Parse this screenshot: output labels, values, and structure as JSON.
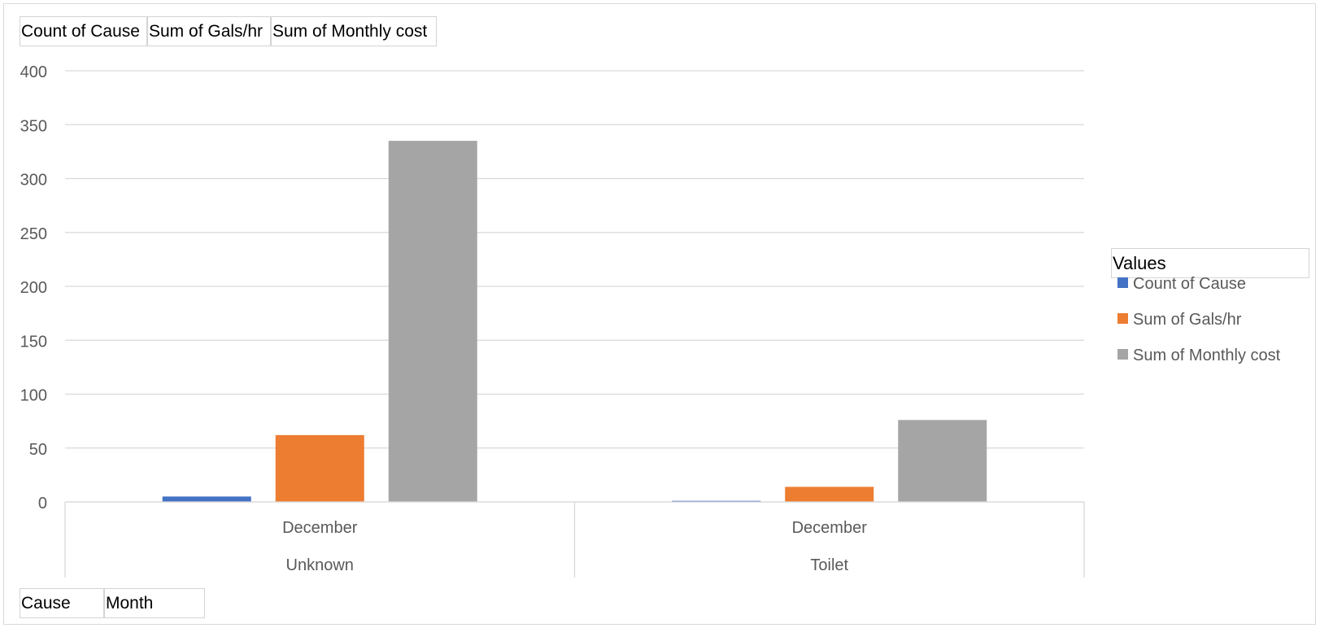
{
  "top_fields": [
    "Count of Cause",
    "Sum of Gals/hr",
    "Sum of Monthly cost"
  ],
  "bottom_fields": [
    "Cause",
    "Month"
  ],
  "legend": {
    "title": "Values"
  },
  "chart_data": {
    "type": "bar",
    "categories": [
      {
        "month": "December",
        "cause": "Unknown"
      },
      {
        "month": "December",
        "cause": "Toilet"
      }
    ],
    "series": [
      {
        "name": "Count of Cause",
        "color": "#4472c4",
        "values": [
          5,
          1
        ]
      },
      {
        "name": "Sum of Gals/hr",
        "color": "#ed7d31",
        "values": [
          62,
          14
        ]
      },
      {
        "name": "Sum of Monthly cost",
        "color": "#a5a5a5",
        "values": [
          335,
          76
        ]
      }
    ],
    "ylim": [
      0,
      400
    ],
    "yticks": [
      0,
      50,
      100,
      150,
      200,
      250,
      300,
      350,
      400
    ],
    "grid": true,
    "legend_position": "right"
  }
}
